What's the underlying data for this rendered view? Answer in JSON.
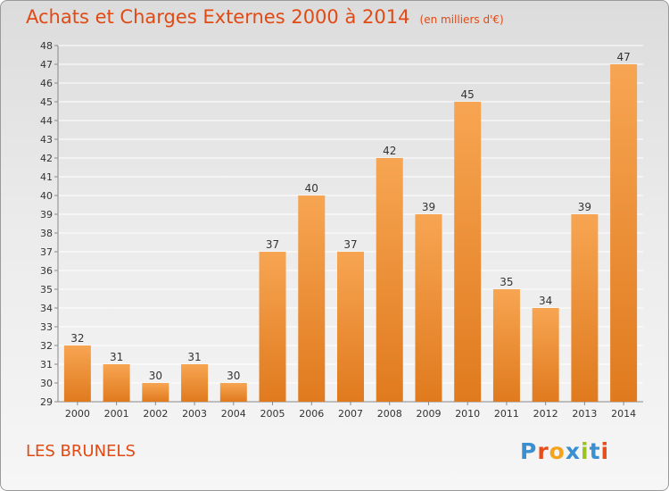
{
  "header": {
    "title": "Achats et Charges Externes 2000 à 2014",
    "unit": "(en milliers d'€)"
  },
  "footer": {
    "commune": "LES BRUNELS",
    "logo_text": "Proxiti",
    "logo_colors": [
      "#3a8fd0",
      "#e84d1c",
      "#f4a31c",
      "#3a8fd0",
      "#9ac31c",
      "#3a8fd0",
      "#e84d1c"
    ]
  },
  "colors": {
    "accent": "#e14a14",
    "bar_top": "#f7a552",
    "bar_bottom": "#e07a1e",
    "grid": "#ffffff"
  },
  "chart_data": {
    "type": "bar",
    "title": "Achats et Charges Externes 2000 à 2014",
    "subtitle": "(en milliers d'€)",
    "xlabel": "",
    "ylabel": "",
    "categories": [
      "2000",
      "2001",
      "2002",
      "2003",
      "2004",
      "2005",
      "2006",
      "2007",
      "2008",
      "2009",
      "2010",
      "2011",
      "2012",
      "2013",
      "2014"
    ],
    "values": [
      32,
      31,
      30,
      31,
      30,
      37,
      40,
      37,
      42,
      39,
      45,
      35,
      34,
      39,
      47
    ],
    "ylim": [
      29,
      48
    ],
    "yticks": [
      29,
      30,
      31,
      32,
      33,
      34,
      35,
      36,
      37,
      38,
      39,
      40,
      41,
      42,
      43,
      44,
      45,
      46,
      47,
      48
    ],
    "grid": true,
    "data_labels": true,
    "legend": "none"
  }
}
